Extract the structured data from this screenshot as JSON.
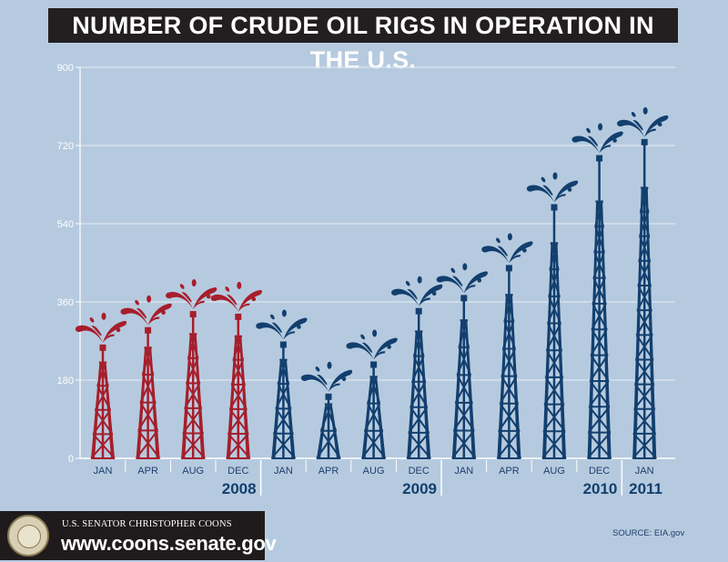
{
  "title": "NUMBER OF CRUDE OIL RIGS IN OPERATION IN THE U.S.",
  "footer": {
    "senator": "U.S. SENATOR CHRISTOPHER COONS",
    "website": "www.coons.senate.gov",
    "seal": "seal-icon"
  },
  "source": "SOURCE: EIA.gov",
  "chart_data": {
    "type": "bar",
    "mark": "oil-derrick",
    "title": "NUMBER OF CRUDE OIL RIGS IN OPERATION IN THE U.S.",
    "xlabel": "",
    "ylabel": "",
    "ylim": [
      0,
      900
    ],
    "yticks": [
      0,
      180,
      360,
      540,
      720,
      900
    ],
    "grid": true,
    "categories": [
      "JAN",
      "APR",
      "AUG",
      "DEC",
      "JAN",
      "APR",
      "AUG",
      "DEC",
      "JAN",
      "APR",
      "AUG",
      "DEC",
      "JAN"
    ],
    "years": [
      {
        "label": "2008",
        "count": 4
      },
      {
        "label": "2009",
        "count": 4
      },
      {
        "label": "2010",
        "count": 4
      },
      {
        "label": "2011",
        "count": 1
      }
    ],
    "values": [
      262,
      302,
      339,
      333,
      269,
      149,
      223,
      346,
      376,
      445,
      585,
      698,
      735
    ],
    "colors": {
      "2008": "#a61e2b",
      "other": "#123f6e"
    }
  }
}
